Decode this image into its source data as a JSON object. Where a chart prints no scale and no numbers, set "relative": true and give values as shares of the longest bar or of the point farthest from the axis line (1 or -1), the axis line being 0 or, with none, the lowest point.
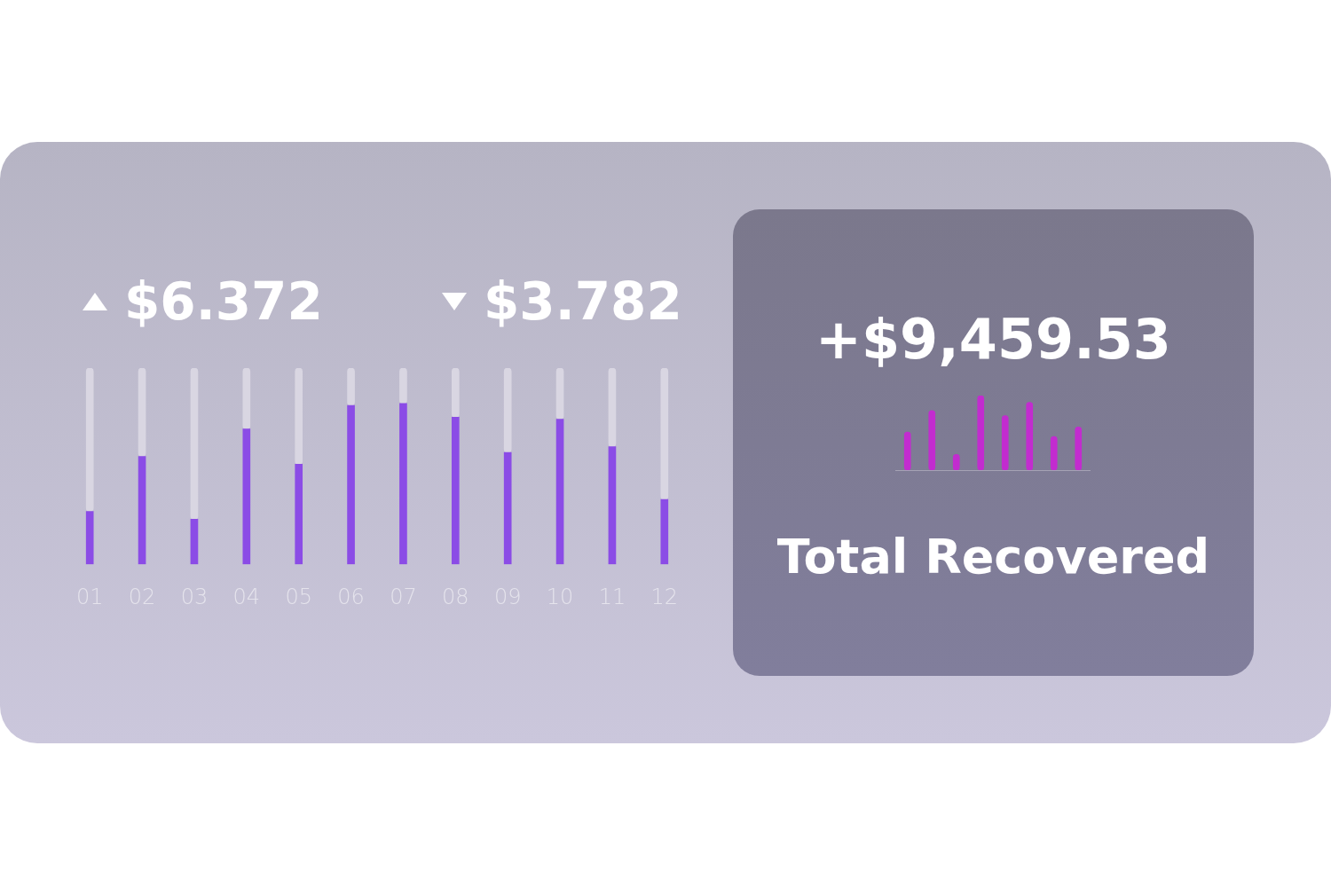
{
  "chart_data": [
    {
      "type": "bar",
      "annotations": [
        "$6.372",
        "$3.782"
      ],
      "categories": [
        "01",
        "02",
        "03",
        "04",
        "05",
        "06",
        "07",
        "08",
        "09",
        "10",
        "11",
        "12"
      ],
      "relative": true,
      "stacked": true,
      "tick_labels": "x",
      "series": [
        {
          "color": "#8b4ce6",
          "values": [
            0.27,
            0.55,
            0.23,
            0.69,
            0.51,
            0.81,
            0.82,
            0.75,
            0.57,
            0.74,
            0.6,
            0.33
          ]
        },
        {
          "color": "#d9d6e2",
          "values": [
            0.73,
            0.45,
            0.77,
            0.31,
            0.49,
            0.19,
            0.18,
            0.25,
            0.43,
            0.26,
            0.4,
            0.67
          ]
        }
      ]
    },
    {
      "type": "bar",
      "title": "+$9,459.53",
      "annotations": [
        "Total Recovered"
      ],
      "categories": [
        null,
        null,
        null,
        null,
        null,
        null,
        null,
        null
      ],
      "relative": true,
      "tick_labels": false,
      "series": [
        {
          "color": "#c22ccf",
          "values": [
            0.51,
            0.8,
            0.21,
            1,
            0.73,
            0.91,
            0.45,
            0.58
          ]
        }
      ]
    }
  ]
}
